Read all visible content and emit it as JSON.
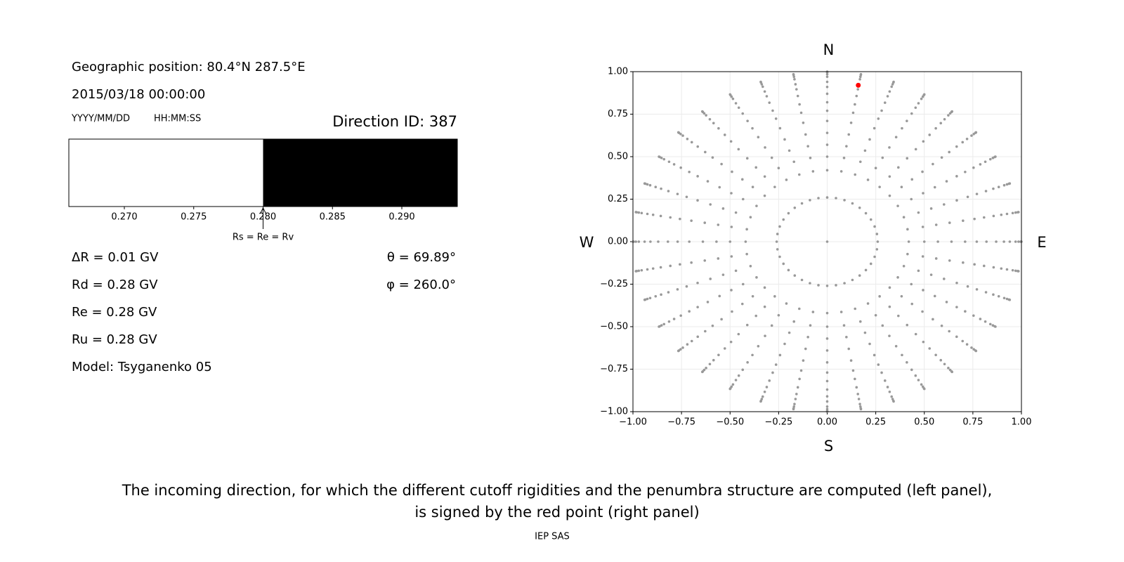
{
  "panel": {
    "position": "Geographic position: 80.4°N 287.5°E",
    "datetime": "2015/03/18 00:00:00",
    "date_format": "YYYY/MM/DD",
    "time_format": "HH:MM:SS",
    "direction_id": "Direction ID: 387",
    "rigidities": [
      "ΔR = 0.01 GV",
      "Rd = 0.28 GV",
      "Re = 0.28 GV",
      "Ru = 0.28 GV",
      "Model: Tsyganenko 05"
    ],
    "angles": [
      "θ = 69.89°",
      "φ = 260.0°"
    ]
  },
  "chart_data": [
    {
      "type": "penumbra",
      "segments": [
        {
          "from": 0.266,
          "to": 0.28,
          "color": "#ffffff"
        },
        {
          "from": 0.28,
          "to": 0.294,
          "color": "#000000"
        }
      ],
      "xlim": [
        0.266,
        0.294
      ],
      "xticks": [
        {
          "value": 0.27,
          "label": "0.270"
        },
        {
          "value": 0.275,
          "label": "0.275"
        },
        {
          "value": 0.28,
          "label": "0.280"
        },
        {
          "value": 0.285,
          "label": "0.285"
        },
        {
          "value": 0.29,
          "label": "0.290"
        }
      ],
      "annotation": {
        "text": "Rs = Re = Rv",
        "x": 0.28
      }
    },
    {
      "type": "polar-scatter",
      "xlim": [
        -1,
        1
      ],
      "ylim": [
        -1,
        1
      ],
      "xticks": [
        {
          "value": -1,
          "label": "−1.00"
        },
        {
          "value": -0.75,
          "label": "−0.75"
        },
        {
          "value": -0.5,
          "label": "−0.50"
        },
        {
          "value": -0.25,
          "label": "−0.25"
        },
        {
          "value": 0,
          "label": "0.00"
        },
        {
          "value": 0.25,
          "label": "0.25"
        },
        {
          "value": 0.5,
          "label": "0.50"
        },
        {
          "value": 0.75,
          "label": "0.75"
        },
        {
          "value": 1,
          "label": "1.00"
        }
      ],
      "yticks": [
        {
          "value": -1,
          "label": "−1.00"
        },
        {
          "value": -0.75,
          "label": "−0.75"
        },
        {
          "value": -0.5,
          "label": "−0.50"
        },
        {
          "value": -0.25,
          "label": "−0.25"
        },
        {
          "value": 0,
          "label": "0.00"
        },
        {
          "value": 0.25,
          "label": "0.25"
        },
        {
          "value": 0.5,
          "label": "0.50"
        },
        {
          "value": 0.75,
          "label": "0.75"
        },
        {
          "value": 1,
          "label": "1.00"
        }
      ],
      "grid": true,
      "labels": {
        "top": "N",
        "bottom": "S",
        "left": "W",
        "right": "E"
      },
      "color": "#999999",
      "radii": [
        0.26,
        0.42,
        0.5,
        0.57,
        0.64,
        0.71,
        0.77,
        0.82,
        0.87,
        0.91,
        0.94,
        0.97,
        0.985,
        0.996,
        1.0
      ],
      "azimuths": [
        0,
        10,
        20,
        30,
        40,
        50,
        60,
        70,
        80,
        90,
        100,
        110,
        120,
        130,
        140,
        150,
        160,
        170,
        180,
        190,
        200,
        210,
        220,
        230,
        240,
        250,
        260,
        270,
        280,
        290,
        300,
        310,
        320,
        330,
        340,
        350
      ],
      "center": {
        "x": 0,
        "y": 0
      },
      "highlight": {
        "x": 0.16,
        "y": 0.92,
        "color": "#ff0000"
      }
    }
  ],
  "caption": [
    "The incoming direction, for which the different cutoff rigidities and the penumbra structure are computed (left panel),",
    "is signed by the red point (right panel)"
  ],
  "footer": "IEP SAS"
}
